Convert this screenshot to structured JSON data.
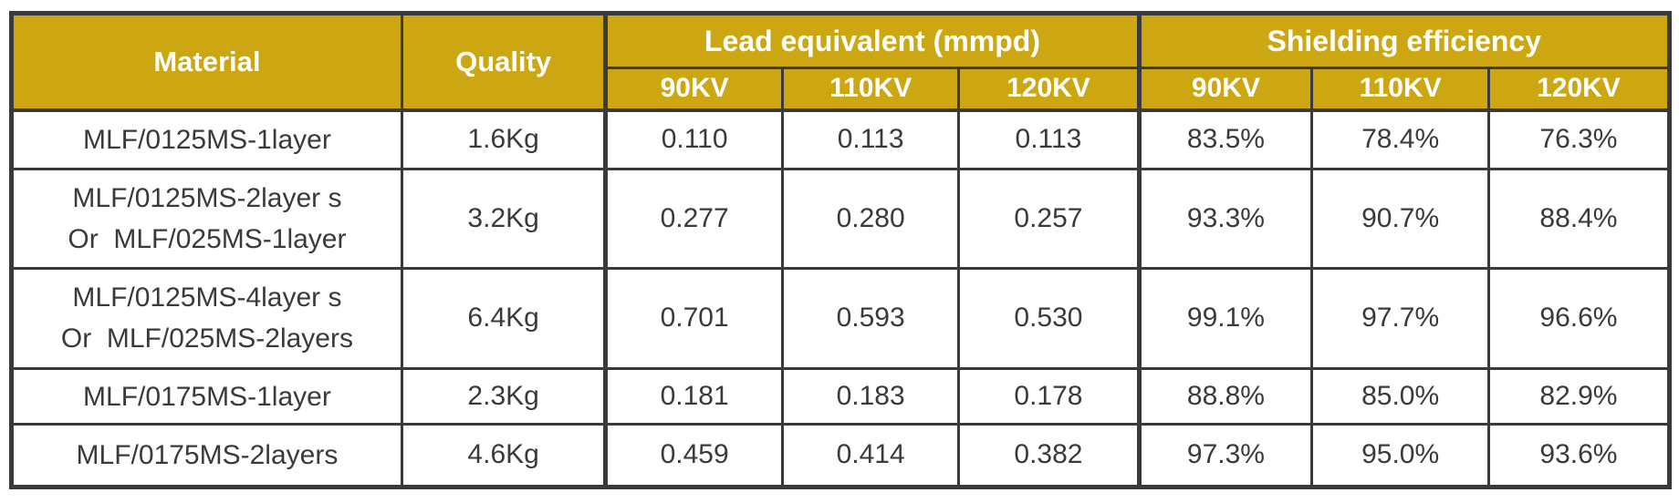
{
  "colors": {
    "header_background": "#CCA712",
    "border": "#3A3A3A",
    "body_text": "#3A3A3A",
    "header_text": "#FFFFFF"
  },
  "table": {
    "header": {
      "material": "Material",
      "quality": "Quality",
      "lead_group": "Lead equivalent (mmpd)",
      "shield_group": "Shielding efficiency",
      "kv_labels": [
        "90KV",
        "110KV",
        "120KV"
      ]
    },
    "rows": [
      {
        "material": "MLF/0125MS-1layer",
        "quality": "1.6Kg",
        "lead": [
          "0.110",
          "0.113",
          "0.113"
        ],
        "shield": [
          "83.5%",
          "78.4%",
          "76.3%"
        ]
      },
      {
        "material": "MLF/0125MS-2layer s\nOr  MLF/025MS-1layer",
        "quality": "3.2Kg",
        "lead": [
          "0.277",
          "0.280",
          "0.257"
        ],
        "shield": [
          "93.3%",
          "90.7%",
          "88.4%"
        ]
      },
      {
        "material": "MLF/0125MS-4layer s\nOr  MLF/025MS-2layers",
        "quality": "6.4Kg",
        "lead": [
          "0.701",
          "0.593",
          "0.530"
        ],
        "shield": [
          "99.1%",
          "97.7%",
          "96.6%"
        ]
      },
      {
        "material": "MLF/0175MS-1layer",
        "quality": "2.3Kg",
        "lead": [
          "0.181",
          "0.183",
          "0.178"
        ],
        "shield": [
          "88.8%",
          "85.0%",
          "82.9%"
        ]
      },
      {
        "material": "MLF/0175MS-2layers",
        "quality": "4.6Kg",
        "lead": [
          "0.459",
          "0.414",
          "0.382"
        ],
        "shield": [
          "97.3%",
          "95.0%",
          "93.6%"
        ]
      }
    ]
  }
}
